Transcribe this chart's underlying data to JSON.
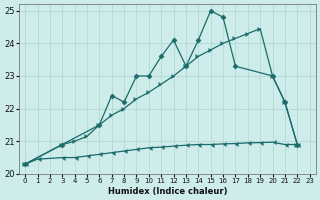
{
  "xlabel": "Humidex (Indice chaleur)",
  "background_color": "#ceecea",
  "grid_color": "#aed4d0",
  "line_color": "#1a6b6b",
  "xlim": [
    -0.5,
    23.5
  ],
  "ylim": [
    20,
    25.2
  ],
  "yticks": [
    20,
    21,
    22,
    23,
    24,
    25
  ],
  "xticks": [
    0,
    1,
    2,
    3,
    4,
    5,
    6,
    7,
    8,
    9,
    10,
    11,
    12,
    13,
    14,
    15,
    16,
    17,
    18,
    19,
    20,
    21,
    22,
    23
  ],
  "line1_x": [
    0,
    1,
    3,
    4,
    5,
    6,
    7,
    8,
    9,
    10,
    11,
    12,
    13,
    14,
    15,
    16,
    17,
    18,
    19,
    20,
    21,
    22
  ],
  "line1_y": [
    20.3,
    20.45,
    20.5,
    20.5,
    20.55,
    20.6,
    20.65,
    20.7,
    20.75,
    20.8,
    20.82,
    20.85,
    20.88,
    20.9,
    20.9,
    20.92,
    20.93,
    20.95,
    20.96,
    20.97,
    20.9,
    20.9
  ],
  "line2_x": [
    0,
    3,
    4,
    5,
    6,
    7,
    8,
    9,
    10,
    11,
    12,
    13,
    14,
    15,
    16,
    17,
    18,
    19,
    20,
    21,
    22
  ],
  "line2_y": [
    20.3,
    20.9,
    21.0,
    21.15,
    21.5,
    21.8,
    22.0,
    22.3,
    22.5,
    22.75,
    23.0,
    23.3,
    23.6,
    23.8,
    24.0,
    24.15,
    24.3,
    24.45,
    23.0,
    22.2,
    20.9
  ],
  "line3_x": [
    0,
    3,
    6,
    7,
    8,
    9,
    10,
    11,
    12,
    13,
    14,
    15,
    16,
    17,
    20,
    21,
    22
  ],
  "line3_y": [
    20.3,
    20.9,
    21.5,
    22.4,
    22.2,
    23.0,
    23.0,
    23.6,
    24.1,
    23.3,
    24.1,
    25.0,
    24.8,
    23.3,
    23.0,
    22.2,
    20.9
  ]
}
